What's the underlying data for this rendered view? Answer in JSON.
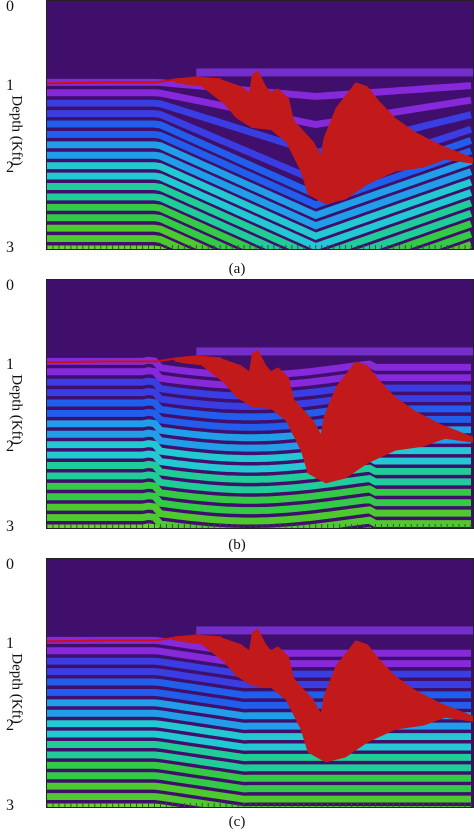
{
  "figure": {
    "y_axis_label": "Depth (Kft)",
    "y_ticks": [
      "0",
      "1",
      "2",
      "3"
    ],
    "panels": [
      {
        "caption": "(a)"
      },
      {
        "caption": "(b)"
      },
      {
        "caption": "(c)"
      }
    ],
    "colors": {
      "background_layer": "#3f0f6b",
      "salt_body": "#c21a1a",
      "sea_floor_line": "#d01010",
      "bands": [
        "#8a2be2",
        "#3a40e8",
        "#1f63f2",
        "#1fa7f0",
        "#22d4d8",
        "#1fd79a",
        "#33d645",
        "#4fd42b",
        "#6dde2a"
      ]
    }
  }
}
